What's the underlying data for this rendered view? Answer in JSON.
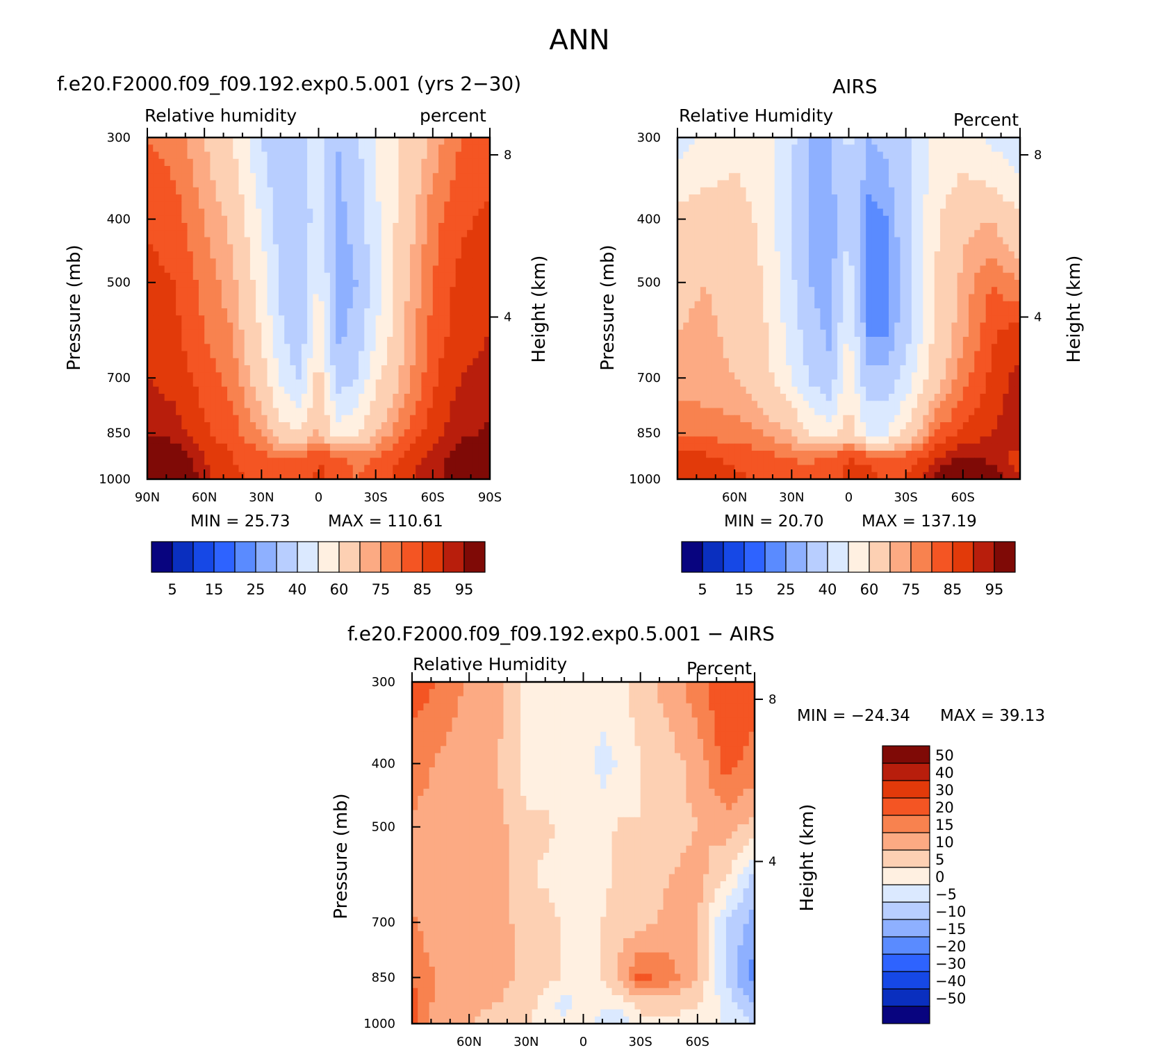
{
  "main_title": "ANN",
  "colors": {
    "rh_levels": [
      "#08047f",
      "#0a2fbf",
      "#1648e6",
      "#2e63ff",
      "#5a8bff",
      "#8eb0ff",
      "#b8ceff",
      "#dbe9ff",
      "#fff0e1",
      "#fdd0b3",
      "#fcaa83",
      "#f8824f",
      "#f45523",
      "#e23a0a",
      "#b81e0c",
      "#7f0a06"
    ],
    "diff_levels": [
      "#08047f",
      "#0a2fbf",
      "#1648e6",
      "#2e63ff",
      "#5a8bff",
      "#8eb0ff",
      "#b8ceff",
      "#dbe9ff",
      "#fff0e1",
      "#fdd0b3",
      "#fcaa83",
      "#f8824f",
      "#f45523",
      "#e23a0a",
      "#b81e0c",
      "#7f0a06"
    ]
  },
  "chart_data": [
    {
      "type": "heatmap",
      "title": "f.e20.F2000.f09_f09.192.exp0.5.001 (yrs 2−30)",
      "left_label": "Relative humidity",
      "right_label": "percent",
      "ylabel": "Pressure (mb)",
      "ylabel_right": "Height (km)",
      "y_ticks": [
        "300",
        "400",
        "500",
        "700",
        "850",
        "1000"
      ],
      "y_right_ticks": [
        "8",
        "4"
      ],
      "x_ticks": [
        "90N",
        "60N",
        "30N",
        "0",
        "30S",
        "60S",
        "90S"
      ],
      "min_text": "MIN =   25.73",
      "max_text": "MAX = 110.61",
      "min": 25.73,
      "max": 110.61,
      "colorbar_labels": [
        "5",
        "15",
        "25",
        "40",
        "60",
        "75",
        "85",
        "95"
      ],
      "lat": [
        -90,
        -75,
        -60,
        -45,
        -30,
        -20,
        -10,
        0,
        10,
        20,
        30,
        45,
        60,
        75,
        90
      ],
      "pressure": [
        300,
        400,
        500,
        600,
        700,
        850,
        925,
        1000
      ],
      "values": [
        [
          83,
          80,
          72,
          62,
          50,
          38,
          30,
          45,
          35,
          30,
          40,
          60,
          70,
          78,
          80
        ],
        [
          86,
          84,
          78,
          65,
          48,
          33,
          27,
          48,
          30,
          35,
          50,
          68,
          75,
          82,
          84
        ],
        [
          88,
          87,
          80,
          68,
          45,
          30,
          26,
          52,
          30,
          38,
          55,
          72,
          78,
          85,
          87
        ],
        [
          90,
          88,
          82,
          70,
          50,
          33,
          28,
          58,
          33,
          42,
          60,
          75,
          80,
          86,
          88
        ],
        [
          92,
          90,
          84,
          72,
          58,
          40,
          35,
          65,
          38,
          48,
          65,
          78,
          83,
          88,
          90
        ],
        [
          96,
          94,
          88,
          80,
          70,
          60,
          55,
          72,
          60,
          65,
          75,
          82,
          86,
          92,
          94
        ],
        [
          100,
          98,
          92,
          86,
          80,
          78,
          82,
          85,
          80,
          80,
          82,
          85,
          90,
          100,
          104
        ],
        [
          102,
          98,
          94,
          88,
          82,
          80,
          84,
          86,
          82,
          82,
          84,
          86,
          92,
          108,
          110
        ]
      ]
    },
    {
      "type": "heatmap",
      "title": "AIRS",
      "left_label": "Relative Humidity",
      "right_label": "Percent",
      "ylabel": "Pressure (mb)",
      "ylabel_right": "Height (km)",
      "y_ticks": [
        "300",
        "400",
        "500",
        "700",
        "850",
        "1000"
      ],
      "y_right_ticks": [
        "8",
        "4"
      ],
      "x_ticks": [
        "60N",
        "30N",
        "0",
        "30S",
        "60S"
      ],
      "min_text": "MIN =   20.70",
      "max_text": "MAX = 137.19",
      "min": 20.7,
      "max": 137.19,
      "colorbar_labels": [
        "5",
        "15",
        "25",
        "40",
        "60",
        "75",
        "85",
        "95"
      ],
      "lat": [
        -90,
        -75,
        -60,
        -45,
        -30,
        -20,
        -10,
        0,
        10,
        20,
        30,
        45,
        60,
        75,
        90
      ],
      "pressure": [
        300,
        400,
        500,
        600,
        700,
        850,
        925,
        1000
      ],
      "values": [
        [
          42,
          48,
          55,
          52,
          38,
          32,
          30,
          42,
          30,
          30,
          42,
          55,
          58,
          52,
          45
        ],
        [
          62,
          70,
          68,
          58,
          35,
          25,
          22,
          40,
          25,
          28,
          40,
          58,
          64,
          66,
          64
        ],
        [
          75,
          80,
          72,
          60,
          34,
          22,
          21,
          45,
          26,
          30,
          42,
          60,
          66,
          70,
          68
        ],
        [
          88,
          84,
          74,
          62,
          36,
          24,
          24,
          52,
          28,
          34,
          46,
          62,
          68,
          72,
          70
        ],
        [
          92,
          86,
          78,
          66,
          44,
          32,
          32,
          58,
          32,
          38,
          50,
          65,
          70,
          72,
          72
        ],
        [
          95,
          90,
          86,
          80,
          62,
          50,
          50,
          65,
          55,
          60,
          70,
          75,
          78,
          78,
          80
        ],
        [
          88,
          92,
          96,
          88,
          82,
          80,
          84,
          85,
          82,
          78,
          80,
          82,
          84,
          86,
          88
        ],
        [
          90,
          100,
          110,
          95,
          86,
          82,
          88,
          86,
          84,
          82,
          84,
          84,
          86,
          86,
          88
        ]
      ]
    },
    {
      "type": "heatmap",
      "title": "f.e20.F2000.f09_f09.192.exp0.5.001 − AIRS",
      "left_label": "Relative Humidity",
      "right_label": "Percent",
      "ylabel": "Pressure (mb)",
      "ylabel_right": "Height (km)",
      "y_ticks": [
        "300",
        "400",
        "500",
        "700",
        "850",
        "1000"
      ],
      "y_right_ticks": [
        "8",
        "4"
      ],
      "x_ticks": [
        "60N",
        "30N",
        "0",
        "30S",
        "60S"
      ],
      "min_text": "MIN = −24.34",
      "max_text": "MAX =   39.13",
      "min": -24.34,
      "max": 39.13,
      "colorbar_labels": [
        "50",
        "40",
        "30",
        "20",
        "15",
        "10",
        "5",
        "0",
        "−5",
        "−10",
        "−15",
        "−20",
        "−30",
        "−40",
        "−50"
      ],
      "lat": [
        -90,
        -75,
        -60,
        -45,
        -30,
        -20,
        -10,
        0,
        10,
        20,
        30,
        45,
        60,
        75,
        90
      ],
      "pressure": [
        300,
        400,
        500,
        600,
        700,
        850,
        925,
        1000
      ],
      "values": [
        [
          22,
          25,
          18,
          12,
          8,
          4,
          2,
          3,
          2,
          2,
          4,
          12,
          14,
          20,
          22
        ],
        [
          18,
          22,
          12,
          8,
          5,
          1,
          -2,
          3,
          2,
          2,
          3,
          10,
          10,
          14,
          18
        ],
        [
          8,
          12,
          10,
          8,
          5,
          6,
          3,
          4,
          4,
          6,
          6,
          12,
          11,
          12,
          14
        ],
        [
          -8,
          5,
          12,
          10,
          5,
          8,
          3,
          3,
          2,
          4,
          6,
          12,
          10,
          11,
          12
        ],
        [
          -12,
          -5,
          10,
          12,
          8,
          8,
          5,
          3,
          4,
          8,
          8,
          12,
          12,
          10,
          16
        ],
        [
          -18,
          -6,
          10,
          18,
          22,
          12,
          5,
          3,
          4,
          8,
          8,
          12,
          14,
          14,
          20
        ],
        [
          -10,
          -2,
          6,
          8,
          8,
          4,
          2,
          2,
          -2,
          2,
          8,
          10,
          12,
          12,
          22
        ],
        [
          -5,
          0,
          2,
          4,
          2,
          -5,
          -2,
          1,
          1,
          2,
          6,
          8,
          10,
          10,
          22
        ]
      ]
    }
  ]
}
